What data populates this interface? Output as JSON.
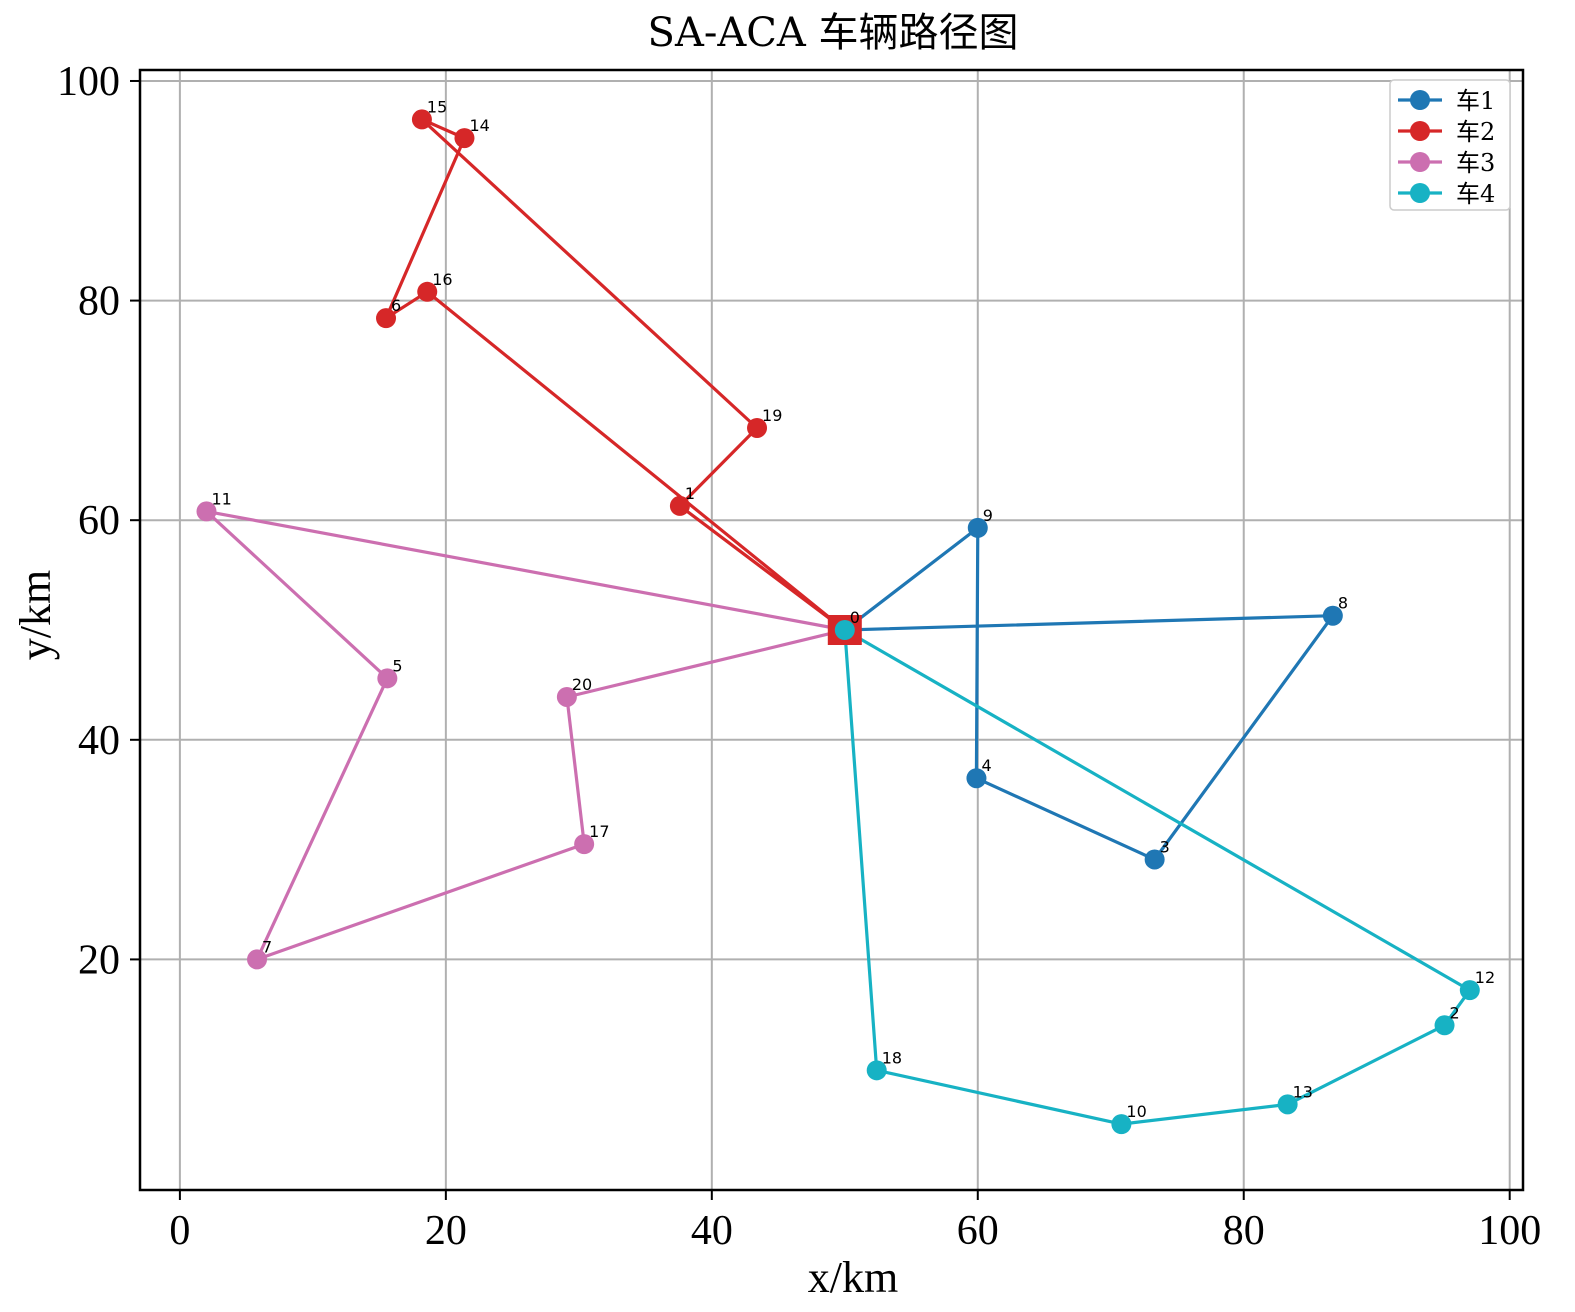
{
  "chart_data": {
    "type": "line",
    "title": "SA-ACA 车辆路径图",
    "xlabel": "x/km",
    "ylabel": "y/km",
    "xlim": [
      -3,
      101
    ],
    "ylim": [
      -1,
      101
    ],
    "xticks": [
      0,
      20,
      40,
      60,
      80,
      100
    ],
    "yticks": [
      20,
      40,
      60,
      80,
      100
    ],
    "grid": true,
    "legend_position": "top-right",
    "depot": {
      "label": "0",
      "x": 50,
      "y": 50,
      "color": "#d62728"
    },
    "series": [
      {
        "name": "车1",
        "color": "#1f77b4",
        "points": [
          {
            "label": "0",
            "x": 50,
            "y": 50
          },
          {
            "label": "9",
            "x": 60,
            "y": 59.3
          },
          {
            "label": "4",
            "x": 59.9,
            "y": 36.5
          },
          {
            "label": "3",
            "x": 73.3,
            "y": 29.1
          },
          {
            "label": "8",
            "x": 86.7,
            "y": 51.3
          },
          {
            "label": "0",
            "x": 50,
            "y": 50
          }
        ]
      },
      {
        "name": "车2",
        "color": "#d62728",
        "points": [
          {
            "label": "0",
            "x": 50,
            "y": 50
          },
          {
            "label": "16",
            "x": 18.6,
            "y": 80.8
          },
          {
            "label": "6",
            "x": 15.5,
            "y": 78.4
          },
          {
            "label": "14",
            "x": 21.4,
            "y": 94.8
          },
          {
            "label": "15",
            "x": 18.2,
            "y": 96.5
          },
          {
            "label": "19",
            "x": 43.4,
            "y": 68.4
          },
          {
            "label": "1",
            "x": 37.6,
            "y": 61.3
          },
          {
            "label": "0",
            "x": 50,
            "y": 50
          }
        ]
      },
      {
        "name": "车3",
        "color": "#cc6fb0",
        "points": [
          {
            "label": "0",
            "x": 50,
            "y": 50
          },
          {
            "label": "11",
            "x": 2,
            "y": 60.8
          },
          {
            "label": "5",
            "x": 15.6,
            "y": 45.6
          },
          {
            "label": "7",
            "x": 5.8,
            "y": 20
          },
          {
            "label": "17",
            "x": 30.4,
            "y": 30.5
          },
          {
            "label": "20",
            "x": 29.1,
            "y": 43.9
          },
          {
            "label": "0",
            "x": 50,
            "y": 50
          }
        ]
      },
      {
        "name": "车4",
        "color": "#17b2c4",
        "points": [
          {
            "label": "0",
            "x": 50,
            "y": 50
          },
          {
            "label": "18",
            "x": 52.4,
            "y": 9.9
          },
          {
            "label": "10",
            "x": 70.8,
            "y": 5
          },
          {
            "label": "13",
            "x": 83.3,
            "y": 6.8
          },
          {
            "label": "2",
            "x": 95.1,
            "y": 14
          },
          {
            "label": "12",
            "x": 97,
            "y": 17.2
          },
          {
            "label": "0",
            "x": 50,
            "y": 50
          }
        ]
      }
    ]
  }
}
